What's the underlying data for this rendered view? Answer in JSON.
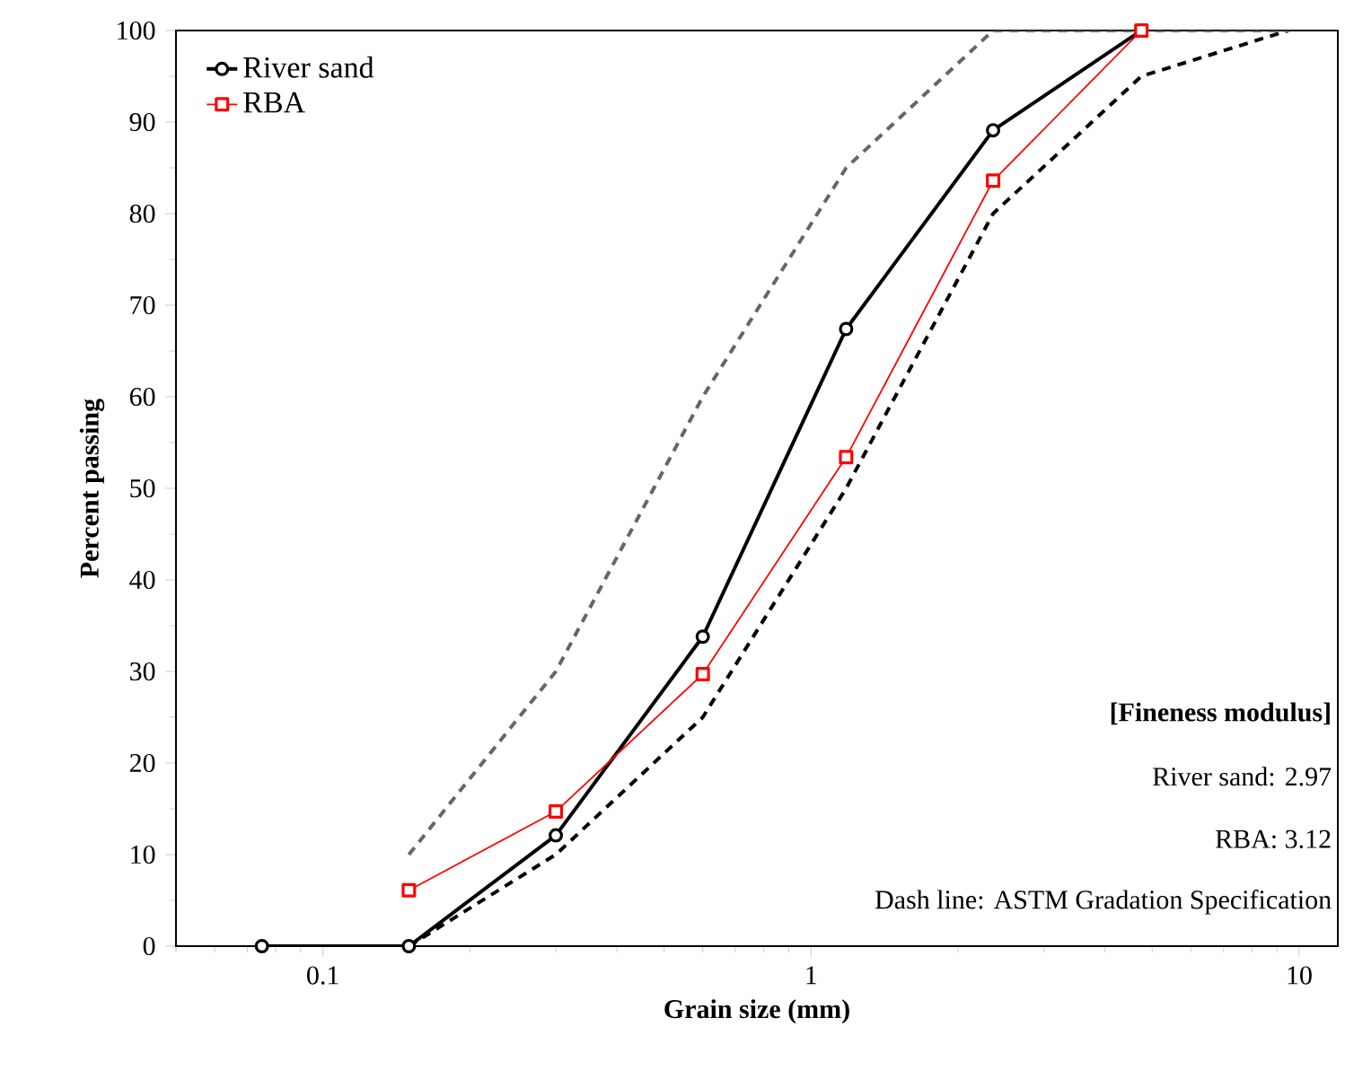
{
  "chart_data": {
    "type": "line",
    "xlabel": "Grain size (mm)",
    "ylabel": "Percent passing",
    "log": "x",
    "xlim": [
      0.05,
      12
    ],
    "ylim": [
      0,
      100
    ],
    "xticks": [
      0.1,
      1,
      10
    ],
    "yticks": [
      0,
      10,
      20,
      30,
      40,
      50,
      60,
      70,
      80,
      90,
      100
    ],
    "grid": false,
    "legend": "top left",
    "series": [
      {
        "name": "River sand",
        "color": "#000000",
        "marker": "circle",
        "line_style": "solid",
        "x": [
          0.075,
          0.15,
          0.3,
          0.6,
          1.18,
          2.36,
          4.75
        ],
        "values": [
          0,
          0,
          12.1,
          33.8,
          67.4,
          89.1,
          100
        ]
      },
      {
        "name": "RBA",
        "color": "#ff0000",
        "marker": "square",
        "line_style": "solid",
        "x": [
          0.15,
          0.3,
          0.6,
          1.18,
          2.36,
          4.75
        ],
        "values": [
          6.1,
          14.7,
          29.7,
          53.4,
          83.6,
          100
        ]
      },
      {
        "color": "#000000",
        "marker": "none",
        "line_style": "dashed",
        "x": [
          0.15,
          0.3,
          0.6,
          1.18,
          2.36,
          4.75,
          9.5
        ],
        "values": [
          0,
          10,
          25,
          50,
          80,
          95,
          100
        ]
      },
      {
        "color": "#666666",
        "marker": "none",
        "line_style": "dashed",
        "x": [
          0.15,
          0.3,
          0.6,
          1.18,
          2.36,
          4.75,
          9.5
        ],
        "values": [
          10,
          30,
          60,
          85,
          100,
          100,
          100
        ]
      }
    ],
    "annotations": [
      "**[Fineness modulus]**",
      "River sand: 2.97",
      "RBA: 3.12",
      "Dash line: ASTM Gradation Specification"
    ]
  }
}
